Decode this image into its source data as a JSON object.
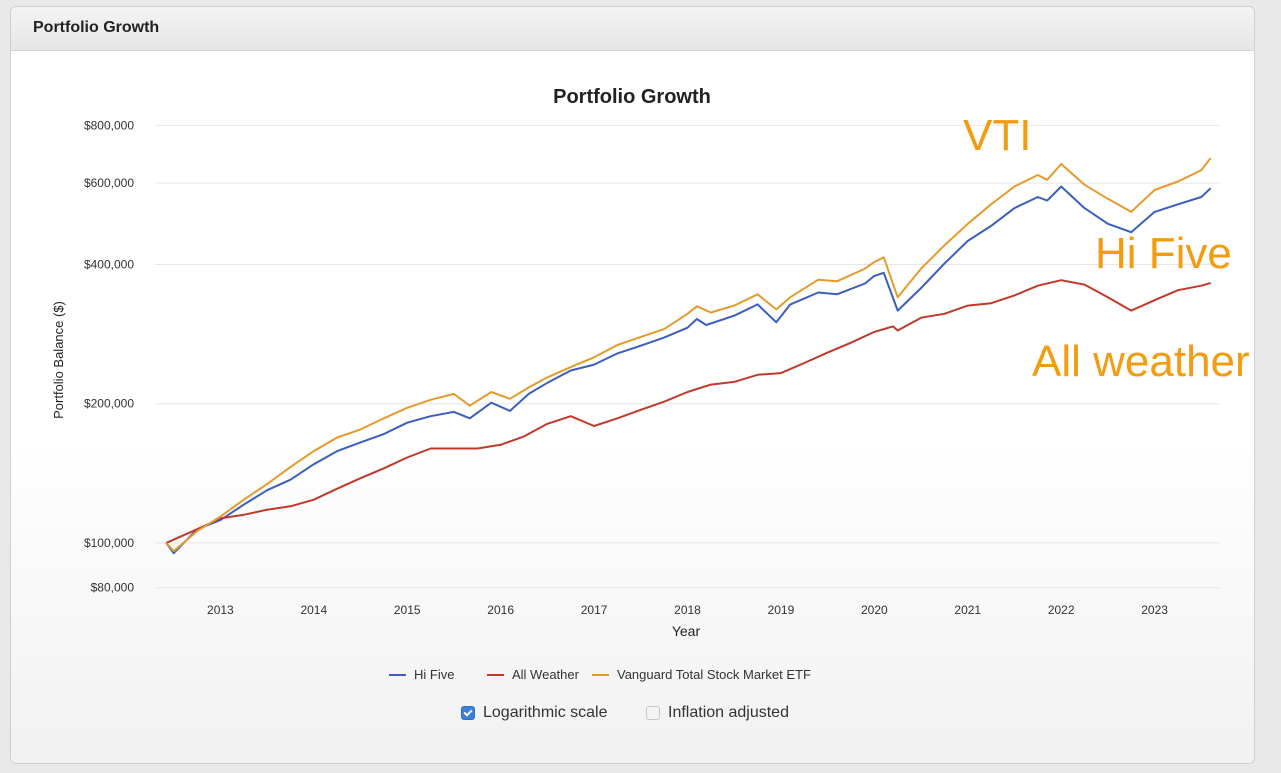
{
  "panel": {
    "title": "Portfolio Growth"
  },
  "colors": {
    "hi_five": "#3b5fc0",
    "all_weather": "#c0392b",
    "vti": "#e69a2e",
    "annotation": "#f39c12"
  },
  "chart_data": {
    "type": "line",
    "title": "Portfolio Growth",
    "xlabel": "Year",
    "ylabel": "Portfolio Balance ($)",
    "y_scale": "log",
    "ylim": [
      76000,
      830000
    ],
    "xlim": [
      2012.3,
      2023.7
    ],
    "y_ticks": [
      {
        "value": 80000,
        "label": "$80,000"
      },
      {
        "value": 100000,
        "label": "$100,000"
      },
      {
        "value": 200000,
        "label": "$200,000"
      },
      {
        "value": 400000,
        "label": "$400,000"
      },
      {
        "value": 600000,
        "label": "$600,000"
      },
      {
        "value": 800000,
        "label": "$800,000"
      }
    ],
    "x_ticks": [
      {
        "value": 2013,
        "label": "2013"
      },
      {
        "value": 2014,
        "label": "2014"
      },
      {
        "value": 2015,
        "label": "2015"
      },
      {
        "value": 2016,
        "label": "2016"
      },
      {
        "value": 2017,
        "label": "2017"
      },
      {
        "value": 2018,
        "label": "2018"
      },
      {
        "value": 2019,
        "label": "2019"
      },
      {
        "value": 2020,
        "label": "2020"
      },
      {
        "value": 2021,
        "label": "2021"
      },
      {
        "value": 2022,
        "label": "2022"
      },
      {
        "value": 2023,
        "label": "2023"
      }
    ],
    "grid": true,
    "legend_position": "bottom",
    "series": [
      {
        "name": "Hi Five",
        "color": "#3b5fc0",
        "points": [
          [
            2012.42,
            100000
          ],
          [
            2012.5,
            95000
          ],
          [
            2012.75,
            107000
          ],
          [
            2013.0,
            112000
          ],
          [
            2013.25,
            121000
          ],
          [
            2013.5,
            130000
          ],
          [
            2013.75,
            137000
          ],
          [
            2014.0,
            148000
          ],
          [
            2014.25,
            158000
          ],
          [
            2014.5,
            165000
          ],
          [
            2014.75,
            172000
          ],
          [
            2015.0,
            182000
          ],
          [
            2015.25,
            188000
          ],
          [
            2015.5,
            192000
          ],
          [
            2015.67,
            186000
          ],
          [
            2015.9,
            201000
          ],
          [
            2016.1,
            193000
          ],
          [
            2016.3,
            210000
          ],
          [
            2016.5,
            222000
          ],
          [
            2016.75,
            236000
          ],
          [
            2017.0,
            243000
          ],
          [
            2017.25,
            257000
          ],
          [
            2017.5,
            267000
          ],
          [
            2017.75,
            278000
          ],
          [
            2018.0,
            292000
          ],
          [
            2018.1,
            305000
          ],
          [
            2018.2,
            296000
          ],
          [
            2018.5,
            310000
          ],
          [
            2018.75,
            328000
          ],
          [
            2018.95,
            300000
          ],
          [
            2019.1,
            328000
          ],
          [
            2019.4,
            348000
          ],
          [
            2019.6,
            345000
          ],
          [
            2019.9,
            364000
          ],
          [
            2020.0,
            378000
          ],
          [
            2020.1,
            384000
          ],
          [
            2020.25,
            318000
          ],
          [
            2020.5,
            356000
          ],
          [
            2020.75,
            402000
          ],
          [
            2021.0,
            450000
          ],
          [
            2021.25,
            485000
          ],
          [
            2021.5,
            530000
          ],
          [
            2021.75,
            560000
          ],
          [
            2021.85,
            550000
          ],
          [
            2022.0,
            590000
          ],
          [
            2022.25,
            530000
          ],
          [
            2022.5,
            490000
          ],
          [
            2022.75,
            470000
          ],
          [
            2023.0,
            520000
          ],
          [
            2023.25,
            540000
          ],
          [
            2023.5,
            560000
          ],
          [
            2023.6,
            585000
          ]
        ]
      },
      {
        "name": "All Weather",
        "color": "#c0392b",
        "points": [
          [
            2012.42,
            100000
          ],
          [
            2012.75,
            107000
          ],
          [
            2013.0,
            113000
          ],
          [
            2013.25,
            115000
          ],
          [
            2013.5,
            118000
          ],
          [
            2013.75,
            120000
          ],
          [
            2014.0,
            124000
          ],
          [
            2014.25,
            131000
          ],
          [
            2014.5,
            138000
          ],
          [
            2014.75,
            145000
          ],
          [
            2015.0,
            153000
          ],
          [
            2015.25,
            160000
          ],
          [
            2015.5,
            160000
          ],
          [
            2015.75,
            160000
          ],
          [
            2016.0,
            163000
          ],
          [
            2016.25,
            170000
          ],
          [
            2016.5,
            181000
          ],
          [
            2016.75,
            188000
          ],
          [
            2017.0,
            179000
          ],
          [
            2017.25,
            186000
          ],
          [
            2017.5,
            194000
          ],
          [
            2017.75,
            202000
          ],
          [
            2018.0,
            212000
          ],
          [
            2018.25,
            220000
          ],
          [
            2018.5,
            223000
          ],
          [
            2018.75,
            231000
          ],
          [
            2019.0,
            233000
          ],
          [
            2019.25,
            245000
          ],
          [
            2019.5,
            258000
          ],
          [
            2019.75,
            271000
          ],
          [
            2020.0,
            286000
          ],
          [
            2020.2,
            294000
          ],
          [
            2020.25,
            288000
          ],
          [
            2020.5,
            307000
          ],
          [
            2020.75,
            313000
          ],
          [
            2021.0,
            326000
          ],
          [
            2021.25,
            330000
          ],
          [
            2021.5,
            343000
          ],
          [
            2021.75,
            360000
          ],
          [
            2022.0,
            370000
          ],
          [
            2022.25,
            362000
          ],
          [
            2022.5,
            340000
          ],
          [
            2022.75,
            318000
          ],
          [
            2023.0,
            335000
          ],
          [
            2023.25,
            352000
          ],
          [
            2023.5,
            360000
          ],
          [
            2023.6,
            365000
          ]
        ]
      },
      {
        "name": "Vanguard Total Stock Market ETF",
        "color": "#e69a2e",
        "points": [
          [
            2012.42,
            100000
          ],
          [
            2012.5,
            96000
          ],
          [
            2012.75,
            106000
          ],
          [
            2013.0,
            114000
          ],
          [
            2013.25,
            124000
          ],
          [
            2013.5,
            134000
          ],
          [
            2013.75,
            146000
          ],
          [
            2014.0,
            158000
          ],
          [
            2014.25,
            169000
          ],
          [
            2014.5,
            176000
          ],
          [
            2014.75,
            186000
          ],
          [
            2015.0,
            196000
          ],
          [
            2015.25,
            204000
          ],
          [
            2015.5,
            210000
          ],
          [
            2015.67,
            198000
          ],
          [
            2015.9,
            212000
          ],
          [
            2016.1,
            205000
          ],
          [
            2016.3,
            217000
          ],
          [
            2016.5,
            228000
          ],
          [
            2016.75,
            240000
          ],
          [
            2017.0,
            252000
          ],
          [
            2017.25,
            268000
          ],
          [
            2017.5,
            279000
          ],
          [
            2017.75,
            290000
          ],
          [
            2018.0,
            313000
          ],
          [
            2018.1,
            325000
          ],
          [
            2018.25,
            315000
          ],
          [
            2018.5,
            326000
          ],
          [
            2018.75,
            345000
          ],
          [
            2018.95,
            320000
          ],
          [
            2019.1,
            340000
          ],
          [
            2019.4,
            371000
          ],
          [
            2019.6,
            368000
          ],
          [
            2019.9,
            392000
          ],
          [
            2020.0,
            405000
          ],
          [
            2020.1,
            415000
          ],
          [
            2020.25,
            340000
          ],
          [
            2020.5,
            392000
          ],
          [
            2020.75,
            440000
          ],
          [
            2021.0,
            490000
          ],
          [
            2021.25,
            540000
          ],
          [
            2021.5,
            590000
          ],
          [
            2021.75,
            625000
          ],
          [
            2021.85,
            610000
          ],
          [
            2022.0,
            660000
          ],
          [
            2022.25,
            595000
          ],
          [
            2022.5,
            555000
          ],
          [
            2022.75,
            520000
          ],
          [
            2023.0,
            580000
          ],
          [
            2023.25,
            605000
          ],
          [
            2023.5,
            640000
          ],
          [
            2023.6,
            680000
          ]
        ]
      }
    ],
    "annotations": [
      {
        "text": "VTI"
      },
      {
        "text": "Hi Five"
      },
      {
        "text": "All weather"
      }
    ]
  },
  "controls": {
    "log_scale": {
      "label": "Logarithmic scale",
      "checked": true
    },
    "inflation": {
      "label": "Inflation adjusted",
      "checked": false
    }
  }
}
